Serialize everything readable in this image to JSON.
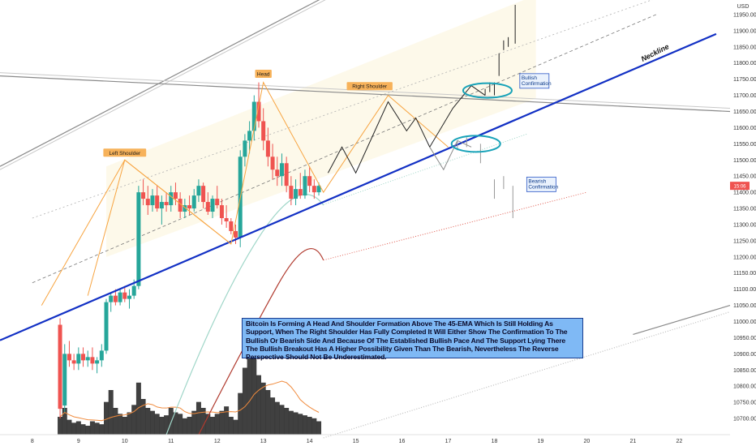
{
  "chart_data": {
    "type": "candlestick",
    "title": "",
    "currency_label": "USD",
    "price_ticks": [
      "11950.00",
      "11900.00",
      "11850.00",
      "11800.00",
      "11750.00",
      "11700.00",
      "11650.00",
      "11600.00",
      "11550.00",
      "11500.00",
      "11450.00",
      "11400.00",
      "11350.00",
      "11300.00",
      "11250.00",
      "11200.00",
      "11150.00",
      "11100.00",
      "11050.00",
      "11000.00",
      "10950.00",
      "10900.00",
      "10850.00",
      "10800.00",
      "10750.00",
      "10700.00"
    ],
    "price_tick_values": [
      11950,
      11900,
      11850,
      11800,
      11750,
      11700,
      11650,
      11600,
      11550,
      11500,
      11450,
      11400,
      11350,
      11300,
      11250,
      11200,
      11150,
      11100,
      11050,
      11000,
      10950,
      10900,
      10850,
      10800,
      10750,
      10700
    ],
    "current_price_label": "15:06",
    "current_price_value": 11420,
    "time_ticks": [
      "8",
      "9",
      "10",
      "11",
      "12",
      "13",
      "14",
      "15",
      "16",
      "17",
      "18",
      "19",
      "20",
      "21",
      "22"
    ],
    "time_tick_values": [
      8,
      9,
      10,
      11,
      12,
      13,
      14,
      15,
      16,
      17,
      18,
      19,
      20,
      21,
      22
    ],
    "ylim": [
      10650,
      11995
    ],
    "xlim": [
      7.3,
      23.1
    ],
    "candles": [
      [
        8.6,
        10990,
        11010,
        10700,
        10730
      ],
      [
        8.7,
        10740,
        10930,
        10720,
        10900
      ],
      [
        8.8,
        10900,
        10940,
        10860,
        10880
      ],
      [
        8.9,
        10880,
        10900,
        10850,
        10870
      ],
      [
        9.0,
        10870,
        10920,
        10850,
        10900
      ],
      [
        9.1,
        10900,
        10920,
        10860,
        10880
      ],
      [
        9.2,
        10880,
        10910,
        10860,
        10890
      ],
      [
        9.3,
        10890,
        10920,
        10850,
        10870
      ],
      [
        9.4,
        10870,
        10890,
        10840,
        10880
      ],
      [
        9.5,
        10880,
        10930,
        10860,
        10910
      ],
      [
        9.6,
        10910,
        11070,
        10900,
        11060
      ],
      [
        9.7,
        11060,
        11090,
        11030,
        11080
      ],
      [
        9.8,
        11080,
        11100,
        11050,
        11060
      ],
      [
        9.9,
        11060,
        11100,
        11050,
        11090
      ],
      [
        10.0,
        11090,
        11110,
        11060,
        11070
      ],
      [
        10.1,
        11070,
        11100,
        11040,
        11080
      ],
      [
        10.2,
        11080,
        11130,
        11070,
        11110
      ],
      [
        10.3,
        11110,
        11420,
        11100,
        11400
      ],
      [
        10.4,
        11400,
        11440,
        11360,
        11380
      ],
      [
        10.5,
        11380,
        11420,
        11330,
        11360
      ],
      [
        10.6,
        11360,
        11410,
        11340,
        11390
      ],
      [
        10.7,
        11390,
        11420,
        11340,
        11350
      ],
      [
        10.8,
        11350,
        11390,
        11300,
        11370
      ],
      [
        10.9,
        11370,
        11400,
        11340,
        11360
      ],
      [
        11.0,
        11360,
        11420,
        11340,
        11400
      ],
      [
        11.1,
        11400,
        11430,
        11360,
        11380
      ],
      [
        11.2,
        11380,
        11400,
        11320,
        11340
      ],
      [
        11.3,
        11340,
        11380,
        11320,
        11360
      ],
      [
        11.4,
        11360,
        11390,
        11330,
        11350
      ],
      [
        11.5,
        11350,
        11410,
        11340,
        11390
      ],
      [
        11.6,
        11390,
        11440,
        11370,
        11420
      ],
      [
        11.7,
        11420,
        11430,
        11350,
        11370
      ],
      [
        11.8,
        11370,
        11400,
        11330,
        11340
      ],
      [
        11.9,
        11340,
        11390,
        11320,
        11380
      ],
      [
        12.0,
        11380,
        11420,
        11350,
        11360
      ],
      [
        12.1,
        11360,
        11380,
        11300,
        11320
      ],
      [
        12.2,
        11320,
        11360,
        11290,
        11310
      ],
      [
        12.3,
        11310,
        11320,
        11270,
        11280
      ],
      [
        12.4,
        11280,
        11300,
        11240,
        11260
      ],
      [
        12.5,
        11260,
        11530,
        11230,
        11510
      ],
      [
        12.6,
        11510,
        11580,
        11480,
        11560
      ],
      [
        12.7,
        11560,
        11620,
        11520,
        11590
      ],
      [
        12.8,
        11590,
        11700,
        11560,
        11680
      ],
      [
        12.9,
        11680,
        11740,
        11600,
        11620
      ],
      [
        13.0,
        11620,
        11660,
        11530,
        11560
      ],
      [
        13.1,
        11560,
        11600,
        11480,
        11510
      ],
      [
        13.2,
        11510,
        11550,
        11440,
        11470
      ],
      [
        13.3,
        11470,
        11510,
        11420,
        11450
      ],
      [
        13.4,
        11450,
        11520,
        11420,
        11490
      ],
      [
        13.5,
        11490,
        11510,
        11400,
        11420
      ],
      [
        13.6,
        11420,
        11450,
        11360,
        11380
      ],
      [
        13.7,
        11380,
        11440,
        11360,
        11410
      ],
      [
        13.8,
        11410,
        11460,
        11380,
        11390
      ],
      [
        13.9,
        11390,
        11470,
        11380,
        11450
      ],
      [
        14.0,
        11450,
        11480,
        11400,
        11420
      ],
      [
        14.1,
        11420,
        11440,
        11380,
        11400
      ],
      [
        14.2,
        11400,
        11430,
        11390,
        11420
      ]
    ],
    "volumes": [
      12,
      18,
      10,
      8,
      9,
      7,
      6,
      9,
      8,
      7,
      22,
      30,
      18,
      14,
      12,
      15,
      20,
      35,
      24,
      18,
      16,
      14,
      12,
      13,
      18,
      15,
      14,
      11,
      12,
      16,
      22,
      18,
      14,
      12,
      14,
      16,
      19,
      12,
      10,
      28,
      45,
      55,
      60,
      40,
      35,
      30,
      25,
      22,
      20,
      18,
      16,
      15,
      14,
      13,
      12,
      11,
      9
    ],
    "volume_max": 60,
    "annotations": {
      "left_shoulder": "Left Shoulder",
      "head": "Head",
      "right_shoulder": "Right Shoulder",
      "neckline": "Neckline",
      "bullish_box": [
        "Bullish",
        "Confirmation"
      ],
      "bearish_box": [
        "Bearish",
        "Confirmation"
      ]
    },
    "description": "Bitcoin Is Forming A Head And Shoulder Formation Above The 45-EMA Which Is Still Holding As Support, When The Right Shoulder Has Fully Completed It Will Either Show The Confirmation To The Bullish Or Bearish Side And Because Of The Established Bullish Pace And The Support Lying There The Bullish Breakout Has A Higher Possibility Given Than The Bearish, Nevertheless The Reverse Perspective Should Not Be Underestimated.",
    "colors": {
      "up": "#26a69a",
      "down": "#ef5350",
      "neckline": "#1230c4",
      "pattern": "#f7a440",
      "ema_fast": "#9fd6c8",
      "ema_slow": "#b03a2e",
      "channel": "#777777",
      "note_bg": "#7fb9f5",
      "volume_bar": "#2b2b2b",
      "volume_ma": "#f08a3c",
      "ellipse": "#17a2b8"
    }
  }
}
